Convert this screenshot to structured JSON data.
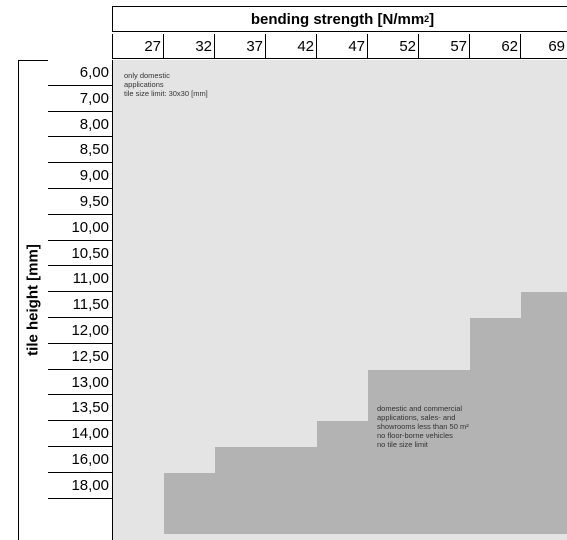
{
  "header": {
    "title_text": "bending strength [N/mm",
    "title_sup": "2",
    "title_end": "]"
  },
  "columns": [
    "27",
    "32",
    "37",
    "42",
    "47",
    "52",
    "57",
    "62",
    "69"
  ],
  "rows": [
    "6,00",
    "7,00",
    "8,00",
    "8,50",
    "9,00",
    "9,50",
    "10,00",
    "10,50",
    "11,00",
    "11,50",
    "12,00",
    "12,50",
    "13,00",
    "13,50",
    "14,00",
    "16,00",
    "18,00"
  ],
  "y_axis_label": "tile height [mm]",
  "regions": {
    "domestic": {
      "lines": [
        "only domestic",
        "applications",
        "tile size limit: 30x30 [mm]"
      ],
      "color": "#e4e4e4"
    },
    "commercial": {
      "lines": [
        "domestic and commercial",
        "applications, sales- and",
        "showrooms less than 50 m²",
        "no floor-borne vehicles",
        "no tile size limit"
      ],
      "color": "#b3b3b3"
    }
  },
  "boundary": {
    "description_note": "first row index where commercial region begins for each column (none for 27)",
    "start_row_by_column": {
      "32": "18,00",
      "37": "16,00",
      "42": "16,00",
      "47": "14,00",
      "52": "13,00",
      "57": "13,00",
      "62": "12,00",
      "69": "11,50"
    }
  }
}
